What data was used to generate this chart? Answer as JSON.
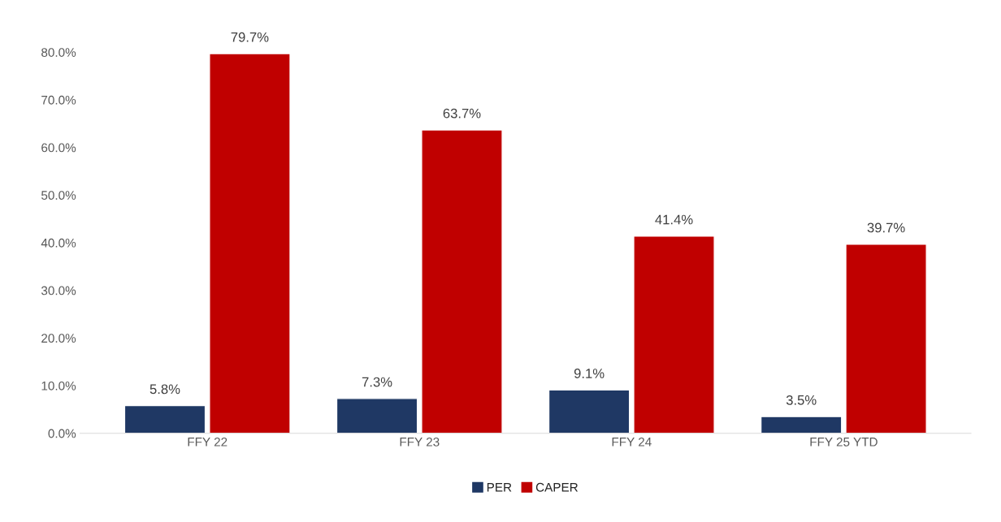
{
  "chart_data": {
    "type": "bar",
    "categories": [
      "FFY 22",
      "FFY 23",
      "FFY 24",
      "FFY 25 YTD"
    ],
    "series": [
      {
        "name": "PER",
        "color": "#1f3864",
        "values": [
          5.8,
          7.3,
          9.1,
          3.5
        ],
        "value_labels": [
          "5.8%",
          "7.3%",
          "9.1%",
          "3.5%"
        ]
      },
      {
        "name": "CAPER",
        "color": "#c00000",
        "values": [
          79.7,
          63.7,
          41.4,
          39.7
        ],
        "value_labels": [
          "79.7%",
          "63.7%",
          "41.4%",
          "39.7%"
        ]
      }
    ],
    "ylim": [
      0,
      80
    ],
    "yticks": [
      {
        "value": 0,
        "label": "0.0%"
      },
      {
        "value": 10,
        "label": "10.0%"
      },
      {
        "value": 20,
        "label": "20.0%"
      },
      {
        "value": 30,
        "label": "30.0%"
      },
      {
        "value": 40,
        "label": "40.0%"
      },
      {
        "value": 50,
        "label": "50.0%"
      },
      {
        "value": 60,
        "label": "60.0%"
      },
      {
        "value": 70,
        "label": "70.0%"
      },
      {
        "value": 80,
        "label": "80.0%"
      }
    ],
    "grid": false,
    "legend": "bottom"
  }
}
